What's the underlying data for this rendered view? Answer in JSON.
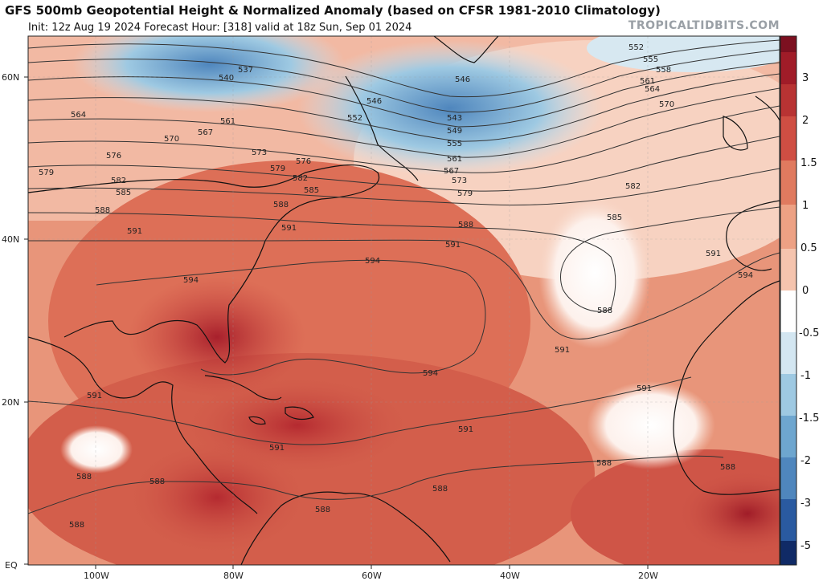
{
  "title": "GFS 500mb Geopotential Height & Normalized Anomaly (based on CFSR 1981-2010 Climatology)",
  "subtitle": "Init: 12z Aug 19 2024   Forecast Hour: [318]   valid at 18z Sun, Sep 01 2024",
  "watermark": "TROPICALTIDBITS.COM",
  "map": {
    "lat_labels": [
      "60N",
      "40N",
      "20N",
      "EQ"
    ],
    "lon_labels": [
      "100W",
      "80W",
      "60W",
      "40W",
      "20W"
    ],
    "contour_labels": [
      "552",
      "555",
      "558",
      "561",
      "564",
      "570",
      "546",
      "543",
      "549",
      "555",
      "561",
      "567",
      "573",
      "579",
      "582",
      "585",
      "588",
      "591",
      "594",
      "540",
      "537",
      "546",
      "552",
      "564",
      "561",
      "567",
      "570",
      "576",
      "573",
      "576",
      "579",
      "582",
      "585",
      "588",
      "591",
      "594",
      "591",
      "588",
      "585",
      "582",
      "579",
      "591",
      "588",
      "591",
      "594",
      "591",
      "588",
      "594",
      "591",
      "588",
      "588",
      "588",
      "588",
      "588",
      "588",
      "591",
      "591"
    ],
    "colorbar_ticks": [
      "3",
      "2",
      "1.5",
      "1",
      "0.5",
      "0",
      "-0.5",
      "-1",
      "-1.5",
      "-2",
      "-3",
      "-5"
    ],
    "colors": {
      "strong_positive": "#a01c28",
      "positive": "#e07a5f",
      "weak_positive": "#f5c4ae",
      "neutral": "#ffffff",
      "negative": "#9ec9e2",
      "strong_negative": "#2a5aa0"
    }
  }
}
